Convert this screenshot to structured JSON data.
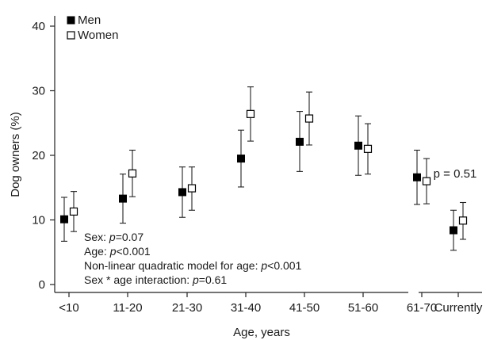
{
  "chart_data": {
    "type": "scatter",
    "ylabel": "Dog owners (%)",
    "xlabel": "Age, years",
    "ylim": [
      0,
      40
    ],
    "yticks": [
      "0",
      "10",
      "20",
      "30",
      "40"
    ],
    "categories": [
      "<10",
      "11-20",
      "21-30",
      "31-40",
      "41-50",
      "51-60",
      "61-70"
    ],
    "extra_category": "Currently",
    "legend_position": "top-left",
    "grid": false,
    "series": [
      {
        "name": "Men",
        "marker": "filled-square",
        "color": "#000000",
        "values": [
          10.1,
          13.3,
          14.3,
          19.5,
          22.1,
          21.5,
          16.6
        ],
        "lower": [
          6.7,
          9.5,
          10.4,
          15.1,
          17.5,
          16.9,
          12.4
        ],
        "upper": [
          13.5,
          17.1,
          18.2,
          23.9,
          26.8,
          26.1,
          20.8
        ],
        "current": {
          "value": 8.4,
          "lower": 5.3,
          "upper": 11.5
        }
      },
      {
        "name": "Women",
        "marker": "open-square",
        "color": "#ffffff",
        "values": [
          11.3,
          17.2,
          14.9,
          26.4,
          25.7,
          21.0,
          16.0
        ],
        "lower": [
          8.2,
          13.6,
          11.5,
          22.2,
          21.6,
          17.1,
          12.5
        ],
        "upper": [
          14.4,
          20.8,
          18.2,
          30.6,
          29.8,
          24.9,
          19.5
        ],
        "current": {
          "value": 9.9,
          "lower": 7.0,
          "upper": 12.7
        }
      }
    ],
    "annotations": {
      "current_p": "p = 0.51",
      "stats": [
        {
          "prefix": "Sex: ",
          "italic": "p",
          "suffix": "=0.07"
        },
        {
          "prefix": "Age: ",
          "italic": "p",
          "suffix": "<0.001"
        },
        {
          "prefix": "Non-linear quadratic model for age: ",
          "italic": "p",
          "suffix": "<0.001"
        },
        {
          "prefix": "Sex * age interaction: ",
          "italic": "p",
          "suffix": "=0.61"
        }
      ]
    }
  }
}
